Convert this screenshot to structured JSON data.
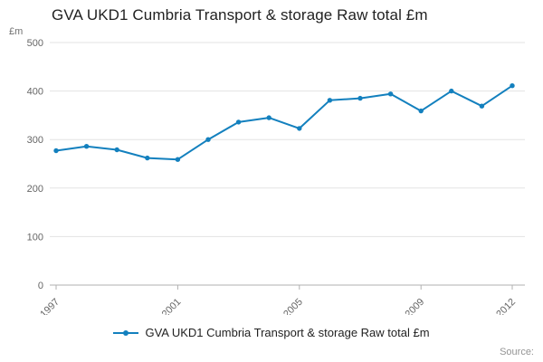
{
  "source": {
    "label": "Source:"
  },
  "chart_data": {
    "type": "line",
    "title": "GVA UKD1 Cumbria Transport & storage Raw total £m",
    "xlabel": "",
    "ylabel": "£m",
    "x": [
      1997,
      1998,
      1999,
      2000,
      2001,
      2002,
      2003,
      2004,
      2005,
      2006,
      2007,
      2008,
      2009,
      2010,
      2011,
      2012
    ],
    "series": [
      {
        "name": "GVA UKD1 Cumbria Transport & storage Raw total £m",
        "values": [
          277,
          286,
          279,
          262,
          259,
          300,
          336,
          345,
          323,
          381,
          385,
          394,
          359,
          400,
          369,
          411
        ]
      }
    ],
    "ylim": [
      0,
      500
    ],
    "yticks": [
      0,
      100,
      200,
      300,
      400,
      500
    ],
    "xticks": [
      1997,
      2001,
      2005,
      2009,
      2012
    ],
    "grid": "horizontal",
    "legend_position": "bottom",
    "line_color": "#1380be",
    "grid_color": "#e3e3e3",
    "axis_color": "#b0b0b0",
    "tick_label_color": "#666666"
  }
}
